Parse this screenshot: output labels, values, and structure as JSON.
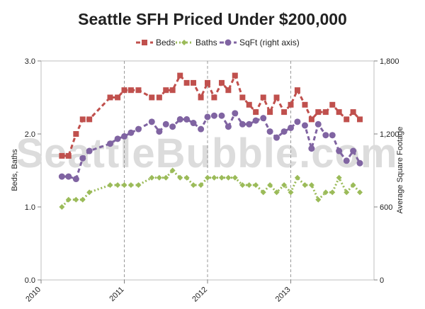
{
  "watermark": "SeattleBubble.com",
  "chart_data": {
    "type": "line",
    "title": "Seattle SFH Priced Under $200,000",
    "ylabel": "Beds, Baths",
    "y2label": "Average Square Footage",
    "ylim": [
      0,
      3
    ],
    "y2lim": [
      0,
      1800
    ],
    "yticks": [
      "0.0",
      "1.0",
      "2.0",
      "3.0"
    ],
    "y2ticks": [
      "0",
      "600",
      "1,200",
      "1,800"
    ],
    "xticks": [
      "2010",
      "2011",
      "2012",
      "2013"
    ],
    "xlim": [
      2010,
      2014.0
    ],
    "grid": "vertical dashed at years",
    "legend_position": "top-center",
    "series": [
      {
        "name": "Beds",
        "axis": "left",
        "color": "#c0504d",
        "marker": "square",
        "dash": "dash",
        "points": [
          [
            2010.25,
            1.7
          ],
          [
            2010.33,
            1.7
          ],
          [
            2010.42,
            2.0
          ],
          [
            2010.5,
            2.2
          ],
          [
            2010.58,
            2.2
          ],
          [
            2010.83,
            2.5
          ],
          [
            2010.92,
            2.5
          ],
          [
            2011.0,
            2.6
          ],
          [
            2011.08,
            2.6
          ],
          [
            2011.17,
            2.6
          ],
          [
            2011.33,
            2.5
          ],
          [
            2011.42,
            2.5
          ],
          [
            2011.5,
            2.6
          ],
          [
            2011.58,
            2.6
          ],
          [
            2011.67,
            2.8
          ],
          [
            2011.75,
            2.7
          ],
          [
            2011.83,
            2.7
          ],
          [
            2011.92,
            2.5
          ],
          [
            2012.0,
            2.7
          ],
          [
            2012.08,
            2.5
          ],
          [
            2012.17,
            2.7
          ],
          [
            2012.25,
            2.6
          ],
          [
            2012.33,
            2.8
          ],
          [
            2012.42,
            2.5
          ],
          [
            2012.5,
            2.4
          ],
          [
            2012.58,
            2.3
          ],
          [
            2012.67,
            2.5
          ],
          [
            2012.75,
            2.3
          ],
          [
            2012.83,
            2.5
          ],
          [
            2012.92,
            2.3
          ],
          [
            2013.0,
            2.4
          ],
          [
            2013.08,
            2.6
          ],
          [
            2013.17,
            2.4
          ],
          [
            2013.25,
            2.2
          ],
          [
            2013.33,
            2.3
          ],
          [
            2013.42,
            2.3
          ],
          [
            2013.5,
            2.4
          ],
          [
            2013.58,
            2.3
          ],
          [
            2013.67,
            2.2
          ],
          [
            2013.75,
            2.3
          ],
          [
            2013.83,
            2.2
          ]
        ]
      },
      {
        "name": "Baths",
        "axis": "left",
        "color": "#9bbb59",
        "marker": "diamond",
        "dash": "dot",
        "points": [
          [
            2010.25,
            1.0
          ],
          [
            2010.33,
            1.1
          ],
          [
            2010.42,
            1.1
          ],
          [
            2010.5,
            1.1
          ],
          [
            2010.58,
            1.2
          ],
          [
            2010.83,
            1.3
          ],
          [
            2010.92,
            1.3
          ],
          [
            2011.0,
            1.3
          ],
          [
            2011.08,
            1.3
          ],
          [
            2011.17,
            1.3
          ],
          [
            2011.33,
            1.4
          ],
          [
            2011.42,
            1.4
          ],
          [
            2011.5,
            1.4
          ],
          [
            2011.58,
            1.5
          ],
          [
            2011.67,
            1.4
          ],
          [
            2011.75,
            1.4
          ],
          [
            2011.83,
            1.3
          ],
          [
            2011.92,
            1.3
          ],
          [
            2012.0,
            1.4
          ],
          [
            2012.08,
            1.4
          ],
          [
            2012.17,
            1.4
          ],
          [
            2012.25,
            1.4
          ],
          [
            2012.33,
            1.4
          ],
          [
            2012.42,
            1.3
          ],
          [
            2012.5,
            1.3
          ],
          [
            2012.58,
            1.3
          ],
          [
            2012.67,
            1.2
          ],
          [
            2012.75,
            1.3
          ],
          [
            2012.83,
            1.2
          ],
          [
            2012.92,
            1.3
          ],
          [
            2013.0,
            1.2
          ],
          [
            2013.08,
            1.4
          ],
          [
            2013.17,
            1.3
          ],
          [
            2013.25,
            1.3
          ],
          [
            2013.33,
            1.1
          ],
          [
            2013.42,
            1.2
          ],
          [
            2013.5,
            1.2
          ],
          [
            2013.58,
            1.4
          ],
          [
            2013.67,
            1.2
          ],
          [
            2013.75,
            1.3
          ],
          [
            2013.83,
            1.2
          ]
        ]
      },
      {
        "name": "SqFt (right axis)",
        "axis": "right",
        "color": "#8064a2",
        "marker": "circle",
        "dash": "dash",
        "points": [
          [
            2010.25,
            850
          ],
          [
            2010.33,
            850
          ],
          [
            2010.42,
            830
          ],
          [
            2010.5,
            1000
          ],
          [
            2010.58,
            1060
          ],
          [
            2010.83,
            1120
          ],
          [
            2010.92,
            1160
          ],
          [
            2011.0,
            1180
          ],
          [
            2011.08,
            1210
          ],
          [
            2011.17,
            1240
          ],
          [
            2011.33,
            1300
          ],
          [
            2011.42,
            1220
          ],
          [
            2011.5,
            1280
          ],
          [
            2011.58,
            1260
          ],
          [
            2011.67,
            1320
          ],
          [
            2011.75,
            1320
          ],
          [
            2011.83,
            1290
          ],
          [
            2011.92,
            1240
          ],
          [
            2012.0,
            1340
          ],
          [
            2012.08,
            1350
          ],
          [
            2012.17,
            1350
          ],
          [
            2012.25,
            1260
          ],
          [
            2012.33,
            1370
          ],
          [
            2012.42,
            1280
          ],
          [
            2012.5,
            1280
          ],
          [
            2012.58,
            1310
          ],
          [
            2012.67,
            1330
          ],
          [
            2012.75,
            1220
          ],
          [
            2012.83,
            1170
          ],
          [
            2012.92,
            1220
          ],
          [
            2013.0,
            1250
          ],
          [
            2013.08,
            1300
          ],
          [
            2013.17,
            1270
          ],
          [
            2013.25,
            1080
          ],
          [
            2013.33,
            1280
          ],
          [
            2013.42,
            1190
          ],
          [
            2013.5,
            1190
          ],
          [
            2013.58,
            1060
          ],
          [
            2013.67,
            980
          ],
          [
            2013.75,
            1060
          ],
          [
            2013.83,
            960
          ]
        ]
      }
    ]
  }
}
